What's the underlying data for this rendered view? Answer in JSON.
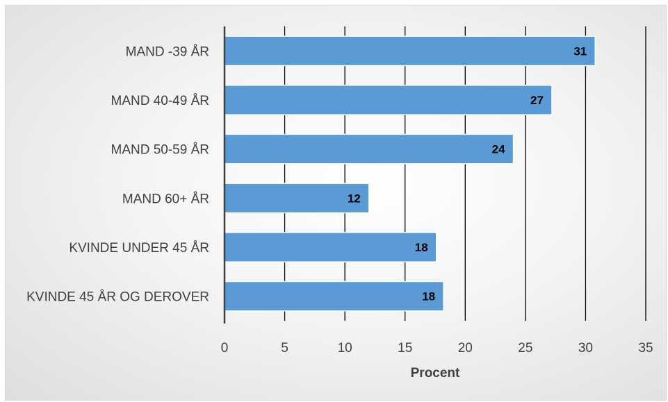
{
  "chart_data": {
    "type": "bar",
    "orientation": "horizontal",
    "categories": [
      "MAND -39 ÅR",
      "MAND 40-49 ÅR",
      "MAND 50-59 ÅR",
      "MAND 60+ ÅR",
      "KVINDE UNDER 45 ÅR",
      "KVINDE 45 ÅR OG DEROVER"
    ],
    "values": [
      30.8,
      27.2,
      24,
      12,
      17.6,
      18.2
    ],
    "data_labels": [
      "31",
      "27",
      "24",
      "12",
      "18",
      "18"
    ],
    "xlabel": "Procent",
    "ylabel": "",
    "xlim": [
      0,
      35
    ],
    "xticks": [
      "0",
      "5",
      "10",
      "15",
      "20",
      "25",
      "30",
      "35"
    ],
    "grid": "vertical",
    "colors": {
      "bar_fill": "#5b9bd5",
      "bar_stroke": "#ffffff",
      "gridline": "#000000",
      "axis_line": "#404040"
    }
  }
}
